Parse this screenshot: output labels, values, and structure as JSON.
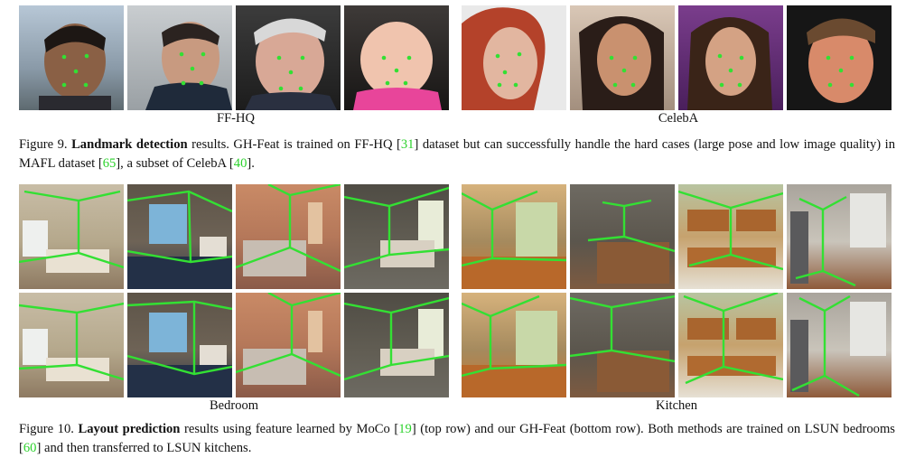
{
  "figure9": {
    "group_labels": [
      "FF-HQ",
      "CelebA"
    ],
    "caption": {
      "prefix": "Figure 9.",
      "bold": "Landmark detection",
      "t1": " results. GH-Feat is trained on FF-HQ [",
      "c1": "31",
      "t2": "] dataset but can successfully handle the hard cases (large pose and low image quality) in MAFL dataset [",
      "c2": "65",
      "t3": "], a subset of CelebA [",
      "c3": "40",
      "t4": "]."
    }
  },
  "figure10": {
    "group_labels": [
      "Bedroom",
      "Kitchen"
    ],
    "caption": {
      "prefix": "Figure 10.",
      "bold": "Layout prediction",
      "t1": " results using feature learned by MoCo [",
      "c1": "19",
      "t2": "] (top row) and our GH-Feat (bottom row). Both methods are trained on LSUN bedrooms [",
      "c2": "60",
      "t3": "] and then transferred to LSUN kitchens."
    }
  },
  "colors": {
    "overlay": "#33e033",
    "citation": "#2bd22b"
  }
}
